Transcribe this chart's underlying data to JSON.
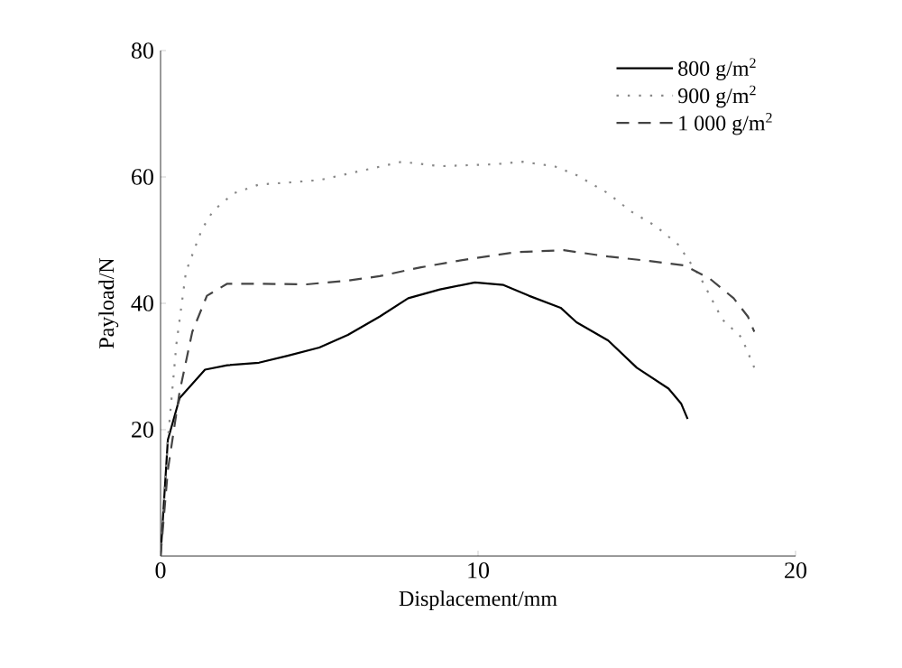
{
  "chart_data": {
    "type": "line",
    "xlabel": "Displacement/mm",
    "ylabel": "Payload/N",
    "xlim": [
      0,
      20
    ],
    "ylim": [
      0,
      80
    ],
    "xticks": [
      0,
      10,
      20
    ],
    "yticks": [
      20,
      40,
      60,
      80
    ],
    "grid": false,
    "legend": "top right",
    "marker": "none",
    "series": [
      {
        "name": "800 g/m$^{2}$",
        "color": "#000000",
        "line_style": "solid",
        "x": [
          0,
          0.23,
          0.6,
          1.4,
          2.1,
          3.1,
          4.0,
          5.0,
          5.9,
          6.9,
          7.8,
          8.8,
          9.9,
          10.8,
          11.6,
          12.6,
          13.1,
          14.1,
          15.0,
          16.0,
          16.4,
          16.6
        ],
        "values": [
          0,
          18.4,
          25,
          29.5,
          30.2,
          30.6,
          31.7,
          33,
          35,
          37.9,
          40.8,
          42.2,
          43.3,
          42.9,
          41.2,
          39.3,
          37,
          34.1,
          29.8,
          26.5,
          24.1,
          21.7
        ]
      },
      {
        "name": "900 g/m$^{2}$",
        "color": "#888888",
        "line_style": "dotted",
        "x": [
          0,
          0.23,
          0.5,
          0.8,
          1.3,
          1.65,
          2.3,
          3.1,
          4.0,
          5.0,
          5.9,
          7.6,
          8.8,
          10.5,
          11.4,
          12.4,
          13.1,
          14.1,
          14.8,
          15.6,
          16.3,
          17.0,
          17.7,
          18.3,
          18.7
        ],
        "values": [
          0,
          18.4,
          33.6,
          45,
          51.7,
          54.6,
          57.4,
          58.8,
          59.1,
          59.5,
          60.5,
          62.4,
          61.7,
          62,
          62.4,
          61.7,
          60.3,
          57.4,
          54.6,
          52.2,
          49.3,
          44.1,
          37.4,
          34.6,
          29.8
        ]
      },
      {
        "name": "1 000 g/m$^{2}$",
        "color": "#444444",
        "line_style": "dashed",
        "x": [
          0,
          0.23,
          0.6,
          1.0,
          1.46,
          2.1,
          3.1,
          4.6,
          5.9,
          6.9,
          8.2,
          9.7,
          11.2,
          12.7,
          14.1,
          15.4,
          16.5,
          17.3,
          18.05,
          18.5,
          18.7
        ],
        "values": [
          0,
          13.6,
          26,
          35.5,
          41.2,
          43.1,
          43.1,
          43,
          43.6,
          44.3,
          45.7,
          47,
          48.1,
          48.4,
          47.4,
          46.7,
          46,
          43.9,
          40.8,
          37.9,
          35.5
        ]
      }
    ]
  }
}
